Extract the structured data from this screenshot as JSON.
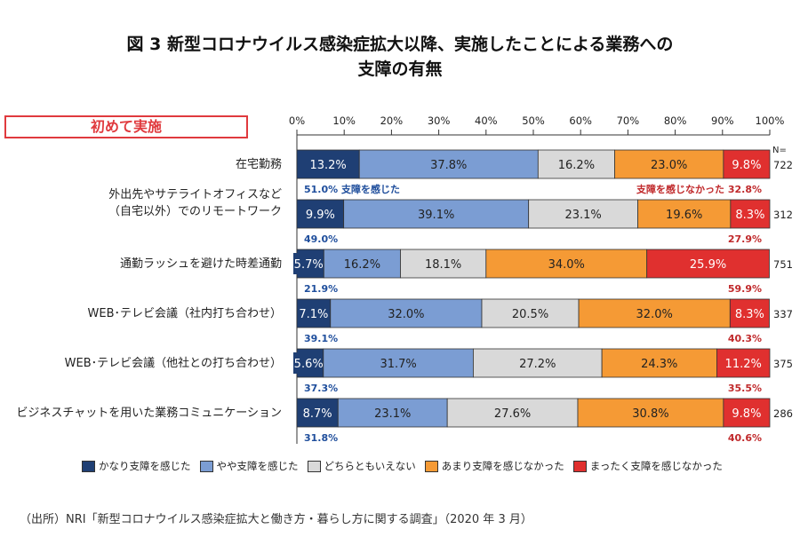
{
  "title_line1": "図 3 新型コロナウイルス感染症拡大以降、実施したことによる業務への",
  "title_line2": "支障の有無",
  "section_label": "初めて実施",
  "source": "（出所）NRI「新型コロナウイルス感染症拡大と働き方・暮らし方に関する調査」（2020 年 3 月）",
  "chart_data": {
    "type": "bar",
    "orientation": "horizontal",
    "stacked": true,
    "title": "図 3 新型コロナウイルス感染症拡大以降、実施したことによる業務への支障の有無",
    "xlabel": "",
    "ylabel": "",
    "xlim": [
      0,
      100
    ],
    "x_ticks": [
      "0%",
      "10%",
      "20%",
      "30%",
      "40%",
      "50%",
      "60%",
      "70%",
      "80%",
      "90%",
      "100%"
    ],
    "n_header": "N=",
    "categories": [
      "在宅勤務",
      "外出先やサテライトオフィスなど\n（自宅以外）でのリモートワーク",
      "通勤ラッシュを避けた時差通勤",
      "WEB･テレビ会議（社内打ち合わせ）",
      "WEB･テレビ会議（他社との打ち合わせ）",
      "ビジネスチャットを用いた業務コミュニケーション"
    ],
    "n": [
      "722",
      "312",
      "751",
      "337",
      "375",
      "286"
    ],
    "series": [
      {
        "name": "かなり支障を感じた",
        "color": "#1f3f74",
        "values": [
          13.2,
          9.9,
          5.7,
          7.1,
          5.6,
          8.7
        ]
      },
      {
        "name": "やや支障を感じた",
        "color": "#7b9dd3",
        "values": [
          37.8,
          39.1,
          16.2,
          32.0,
          31.7,
          23.1
        ]
      },
      {
        "name": "どちらともいえない",
        "color": "#d9d9d9",
        "values": [
          16.2,
          23.1,
          18.1,
          20.5,
          27.2,
          27.6
        ]
      },
      {
        "name": "あまり支障を感じなかった",
        "color": "#f59a35",
        "values": [
          23.0,
          19.6,
          34.0,
          32.0,
          24.3,
          30.8
        ]
      },
      {
        "name": "まったく支障を感じなかった",
        "color": "#e0302f",
        "values": [
          9.8,
          8.3,
          25.9,
          8.3,
          11.2,
          9.8
        ]
      }
    ],
    "summary_felt": {
      "label": "支障を感じた",
      "color": "#1f4e9c",
      "values": [
        "51.0%",
        "49.0%",
        "21.9%",
        "39.1%",
        "37.3%",
        "31.8%"
      ]
    },
    "summary_not_felt": {
      "label": "支障を感じなかった",
      "color": "#c0292b",
      "values": [
        "32.8%",
        "27.9%",
        "59.9%",
        "40.3%",
        "35.5%",
        "40.6%"
      ]
    },
    "legend_position": "bottom"
  }
}
